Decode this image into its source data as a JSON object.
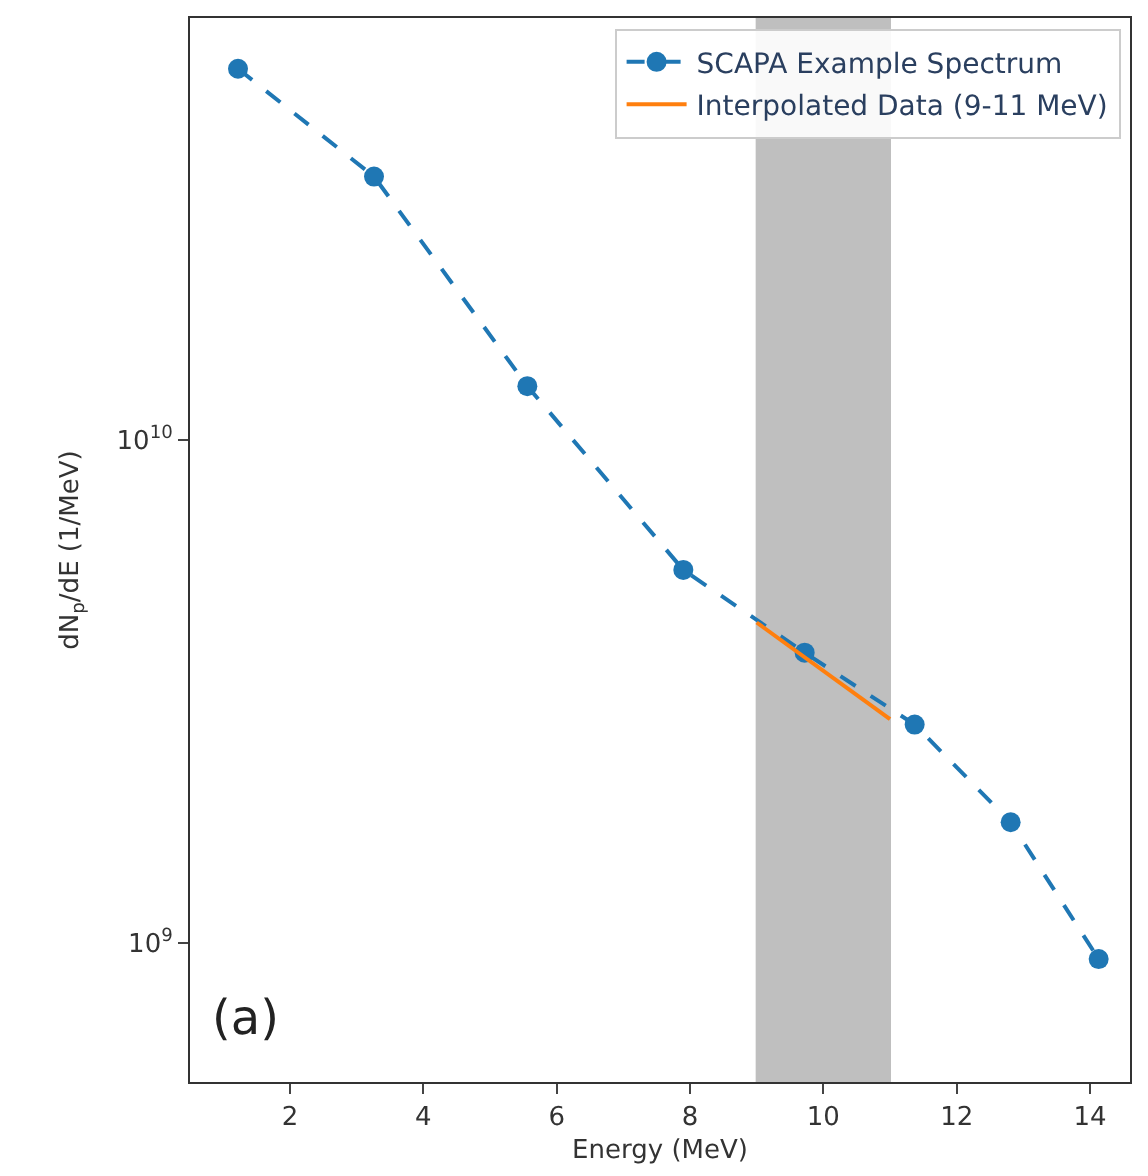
{
  "chart_data": {
    "type": "line",
    "xlabel": "Energy (MeV)",
    "ylabel": "dN$_{p}$/dE (1/MeV)",
    "log": "y",
    "grid": false,
    "legend": "top right",
    "series": [
      {
        "name": "SCAPA Example Spectrum",
        "color": "#1f77b4",
        "marker": "circle",
        "line_style": "dashed",
        "x": [
          1.22,
          3.26,
          5.56,
          7.9,
          9.72,
          11.37,
          12.81,
          14.13
        ],
        "values": [
          54700000000.0,
          33400000000.0,
          12800000000.0,
          5520000000.0,
          3780000000.0,
          2720000000.0,
          1740000000.0,
          930000000.0
        ]
      },
      {
        "name": "Interpolated Data (9-11 MeV)",
        "color": "#ff7f0e",
        "marker": "none",
        "line_style": "solid",
        "x": [
          9,
          11
        ],
        "values": [
          4340000000.0,
          2790000000.0
        ]
      }
    ],
    "bands": [
      {
        "axis": "x",
        "from": 9,
        "to": 11,
        "color": "#808080"
      }
    ],
    "xlim": [
      0.5,
      14.6
    ],
    "xticks": [
      2,
      4,
      6,
      8,
      10,
      12,
      14
    ],
    "ylim": [
      530000000.0,
      69000000000.0
    ],
    "yticks": [
      {
        "value": 1000000000.0,
        "label": "10$^{9}$"
      },
      {
        "value": 10000000000.0,
        "label": "10$^{10}$"
      }
    ],
    "annotations": [
      "(a)"
    ]
  }
}
